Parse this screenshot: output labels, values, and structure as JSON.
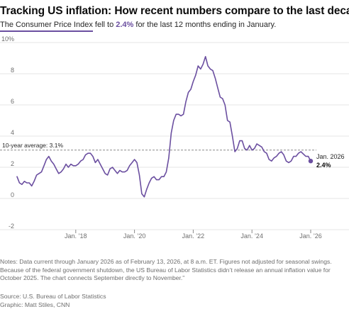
{
  "header": {
    "title": "Tracking US inflation: How recent numbers compare to the last decade",
    "subtitle_lead": "The Consumer Price Index",
    "subtitle_mid": " fell to ",
    "subtitle_value": "2.4%",
    "subtitle_tail": " for the last 12 months ending in January."
  },
  "footer": {
    "notes": "Notes: Data current through January 2026 as of February 13, 2026, at 8 a.m. ET. Figures not adjusted for seasonal swings. Because of the federal government shutdown, the US Bureau of Labor Statistics didn’t release an annual inflation value for October 2025. The chart connects September directly to November.”",
    "source": "Source: U.S. Bureau of Labor Statistics",
    "graphic": "Graphic: Matt Stiles, CNN"
  },
  "colors": {
    "line": "#6b4fa0",
    "accent": "#6b4fa0",
    "grid": "#e6e6e6",
    "average": "#8a8a8a"
  },
  "chart_data": {
    "type": "line",
    "title": "Tracking US inflation: How recent numbers compare to the last decade",
    "ylabel": "",
    "xlabel": "",
    "ylim": [
      -2,
      10
    ],
    "y_ticks": [
      "-2",
      "0",
      "2",
      "4",
      "6",
      "8",
      "10%"
    ],
    "x_ticks": [
      {
        "label": "Jan. ’18",
        "year": 2018
      },
      {
        "label": "Jan. ’20",
        "year": 2020
      },
      {
        "label": "Jan. ’22",
        "year": 2022
      },
      {
        "label": "Jan. ’24",
        "year": 2024
      },
      {
        "label": "Jan. ’26",
        "year": 2026
      }
    ],
    "grid": true,
    "average": {
      "label": "10-year average: 3.1%",
      "value": 3.1
    },
    "end_annotation": {
      "date": "Jan. 2026",
      "value": "2.4%"
    },
    "series": [
      {
        "x": [
          "2016-01",
          "2016-02",
          "2016-03",
          "2016-04",
          "2016-05",
          "2016-06",
          "2016-07",
          "2016-08",
          "2016-09",
          "2016-10",
          "2016-11",
          "2016-12",
          "2017-01",
          "2017-02",
          "2017-03",
          "2017-04",
          "2017-05",
          "2017-06",
          "2017-07",
          "2017-08",
          "2017-09",
          "2017-10",
          "2017-11",
          "2017-12",
          "2018-01",
          "2018-02",
          "2018-03",
          "2018-04",
          "2018-05",
          "2018-06",
          "2018-07",
          "2018-08",
          "2018-09",
          "2018-10",
          "2018-11",
          "2018-12",
          "2019-01",
          "2019-02",
          "2019-03",
          "2019-04",
          "2019-05",
          "2019-06",
          "2019-07",
          "2019-08",
          "2019-09",
          "2019-10",
          "2019-11",
          "2019-12",
          "2020-01",
          "2020-02",
          "2020-03",
          "2020-04",
          "2020-05",
          "2020-06",
          "2020-07",
          "2020-08",
          "2020-09",
          "2020-10",
          "2020-11",
          "2020-12",
          "2021-01",
          "2021-02",
          "2021-03",
          "2021-04",
          "2021-05",
          "2021-06",
          "2021-07",
          "2021-08",
          "2021-09",
          "2021-10",
          "2021-11",
          "2021-12",
          "2022-01",
          "2022-02",
          "2022-03",
          "2022-04",
          "2022-05",
          "2022-06",
          "2022-07",
          "2022-08",
          "2022-09",
          "2022-10",
          "2022-11",
          "2022-12",
          "2023-01",
          "2023-02",
          "2023-03",
          "2023-04",
          "2023-05",
          "2023-06",
          "2023-07",
          "2023-08",
          "2023-09",
          "2023-10",
          "2023-11",
          "2023-12",
          "2024-01",
          "2024-02",
          "2024-03",
          "2024-04",
          "2024-05",
          "2024-06",
          "2024-07",
          "2024-08",
          "2024-09",
          "2024-10",
          "2024-11",
          "2024-12",
          "2025-01",
          "2025-02",
          "2025-03",
          "2025-04",
          "2025-05",
          "2025-06",
          "2025-07",
          "2025-08",
          "2025-09",
          "2025-11",
          "2025-12",
          "2026-01"
        ],
        "y": [
          1.4,
          1.0,
          0.9,
          1.1,
          1.0,
          1.0,
          0.8,
          1.1,
          1.5,
          1.6,
          1.7,
          2.1,
          2.5,
          2.7,
          2.4,
          2.2,
          1.9,
          1.6,
          1.7,
          1.9,
          2.2,
          2.0,
          2.2,
          2.1,
          2.1,
          2.2,
          2.4,
          2.5,
          2.8,
          2.9,
          2.9,
          2.7,
          2.3,
          2.5,
          2.2,
          1.9,
          1.6,
          1.5,
          1.9,
          2.0,
          1.8,
          1.6,
          1.8,
          1.7,
          1.7,
          1.8,
          2.1,
          2.3,
          2.5,
          2.3,
          1.5,
          0.3,
          0.1,
          0.6,
          1.0,
          1.3,
          1.4,
          1.2,
          1.2,
          1.4,
          1.4,
          1.7,
          2.6,
          4.2,
          5.0,
          5.4,
          5.4,
          5.3,
          5.4,
          6.2,
          6.8,
          7.0,
          7.5,
          7.9,
          8.5,
          8.3,
          8.6,
          9.1,
          8.5,
          8.3,
          8.2,
          7.7,
          7.1,
          6.5,
          6.4,
          6.0,
          5.0,
          4.9,
          4.0,
          3.0,
          3.2,
          3.7,
          3.7,
          3.2,
          3.1,
          3.4,
          3.1,
          3.2,
          3.5,
          3.4,
          3.3,
          3.0,
          2.9,
          2.5,
          2.4,
          2.6,
          2.7,
          2.9,
          3.0,
          2.8,
          2.4,
          2.3,
          2.4,
          2.7,
          2.7,
          2.9,
          3.0,
          2.7,
          2.7,
          2.4
        ]
      }
    ]
  }
}
